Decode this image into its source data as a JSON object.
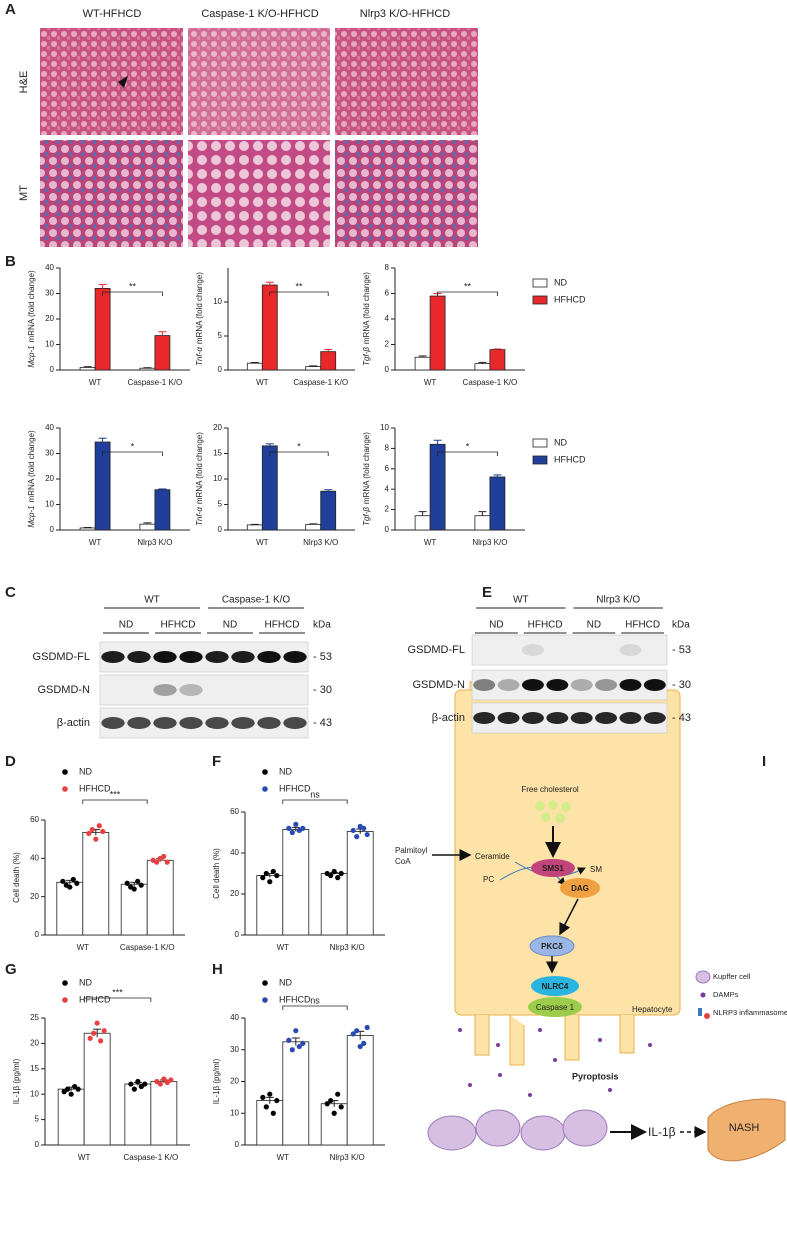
{
  "histology": {
    "letter": "A",
    "columns": [
      "WT-HFHCD",
      "Caspase-1 K/O-HFHCD",
      "Nlrp3 K/O-HFHCD"
    ],
    "rows": [
      "H&E",
      "MT"
    ]
  },
  "chart_data": [
    {
      "type": "bar",
      "letter": "B",
      "ylabel_gene": "Mcp-1",
      "ylabel": "mRNA (fold change)",
      "categories": [
        "WT",
        "Caspase-1 K/O"
      ],
      "series": [
        {
          "name": "ND",
          "color": "#ffffff",
          "values": [
            1,
            0.7
          ],
          "errors": [
            0.3,
            0.2
          ]
        },
        {
          "name": "HFHCD",
          "color": "#e8282b",
          "values": [
            32,
            13.5
          ],
          "errors": [
            1.5,
            1.5
          ]
        }
      ],
      "ylim": [
        0,
        40
      ],
      "yticks": [
        0,
        10,
        20,
        30,
        40
      ],
      "significance": "**"
    },
    {
      "type": "bar",
      "ylabel_gene": "Tnf-α",
      "ylabel": "mRNA (fold change)",
      "categories": [
        "WT",
        "Caspase-1 K/O"
      ],
      "series": [
        {
          "name": "ND",
          "color": "#ffffff",
          "values": [
            1,
            0.5
          ],
          "errors": [
            0.1,
            0.1
          ]
        },
        {
          "name": "HFHCD",
          "color": "#e8282b",
          "values": [
            12.5,
            2.7
          ],
          "errors": [
            0.4,
            0.3
          ]
        }
      ],
      "ylim": [
        0,
        15
      ],
      "yticks": [
        0,
        5,
        10
      ],
      "significance": "**"
    },
    {
      "type": "bar",
      "ylabel_gene": "Tgf-β",
      "ylabel": "mRNA (fold change)",
      "categories": [
        "WT",
        "Caspase-1 K/O"
      ],
      "series": [
        {
          "name": "ND",
          "color": "#ffffff",
          "values": [
            1,
            0.5
          ],
          "errors": [
            0.1,
            0.1
          ]
        },
        {
          "name": "HFHCD",
          "color": "#e8282b",
          "values": [
            5.8,
            1.6
          ],
          "errors": [
            0.2,
            0.05
          ]
        }
      ],
      "ylim": [
        0,
        8
      ],
      "yticks": [
        0,
        2,
        4,
        6,
        8
      ],
      "significance": "**",
      "legend": "right"
    },
    {
      "type": "bar",
      "ylabel_gene": "Mcp-1",
      "ylabel": "mRNA (fold change)",
      "categories": [
        "WT",
        "Nlrp3 K/O"
      ],
      "series": [
        {
          "name": "ND",
          "color": "#ffffff",
          "values": [
            0.8,
            2.3
          ],
          "errors": [
            0.2,
            0.5
          ]
        },
        {
          "name": "HFHCD",
          "color": "#1f3f9a",
          "values": [
            34.5,
            15.8
          ],
          "errors": [
            1.5,
            0.3
          ]
        }
      ],
      "ylim": [
        0,
        40
      ],
      "yticks": [
        0,
        10,
        20,
        30,
        40
      ],
      "significance": "*"
    },
    {
      "type": "bar",
      "ylabel_gene": "Tnf-α",
      "ylabel": "mRNA (fold change)",
      "categories": [
        "WT",
        "Nlrp3 K/O"
      ],
      "series": [
        {
          "name": "ND",
          "color": "#ffffff",
          "values": [
            1,
            1.1
          ],
          "errors": [
            0.1,
            0.1
          ]
        },
        {
          "name": "HFHCD",
          "color": "#1f3f9a",
          "values": [
            16.5,
            7.6
          ],
          "errors": [
            0.4,
            0.3
          ]
        }
      ],
      "ylim": [
        0,
        20
      ],
      "yticks": [
        0,
        5,
        10,
        15,
        20
      ],
      "significance": "*"
    },
    {
      "type": "bar",
      "ylabel_gene": "Tgf-β",
      "ylabel": "mRNA (fold change)",
      "categories": [
        "WT",
        "Nlrp3 K/O"
      ],
      "series": [
        {
          "name": "ND",
          "color": "#ffffff",
          "values": [
            1.4,
            1.4
          ],
          "errors": [
            0.4,
            0.4
          ]
        },
        {
          "name": "HFHCD",
          "color": "#1f3f9a",
          "values": [
            8.4,
            5.2
          ],
          "errors": [
            0.4,
            0.2
          ]
        }
      ],
      "ylim": [
        0,
        10
      ],
      "yticks": [
        0,
        2,
        4,
        6,
        8,
        10
      ],
      "significance": "*",
      "legend": "right"
    },
    {
      "type": "bar",
      "letter": "D",
      "ylabel": "Cell death (%)",
      "categories": [
        "WT",
        "Caspase-1 K/O"
      ],
      "series": [
        {
          "name": "ND",
          "color": "#000000",
          "values": [
            27.5,
            26.5
          ],
          "errors": [
            1,
            1
          ],
          "points": [
            [
              28,
              26,
              25,
              29,
              27
            ],
            [
              27,
              25,
              24,
              28,
              26
            ]
          ]
        },
        {
          "name": "HFHCD",
          "color": "#e84040",
          "values": [
            53.5,
            39
          ],
          "errors": [
            1.5,
            0.8
          ],
          "points": [
            [
              53,
              55,
              50,
              57,
              54
            ],
            [
              39,
              38,
              40,
              41,
              38
            ]
          ]
        }
      ],
      "ylim": [
        0,
        60
      ],
      "yticks": [
        0,
        20,
        40,
        60
      ],
      "significance": "***",
      "legend": "top-left"
    },
    {
      "type": "bar",
      "letter": "F",
      "ylabel": "Cell death (%)",
      "categories": [
        "WT",
        "Nlrp3 K/O"
      ],
      "series": [
        {
          "name": "ND",
          "color": "#000000",
          "values": [
            29,
            30
          ],
          "errors": [
            1,
            0.5
          ],
          "points": [
            [
              28,
              30,
              26,
              31,
              29
            ],
            [
              30,
              29,
              31,
              28,
              30
            ]
          ]
        },
        {
          "name": "HFHCD",
          "color": "#2a4bb5",
          "values": [
            51.5,
            50.5
          ],
          "errors": [
            1,
            1.2
          ],
          "points": [
            [
              52,
              50,
              54,
              51,
              52
            ],
            [
              51,
              48,
              53,
              52,
              49
            ]
          ]
        }
      ],
      "ylim": [
        0,
        60
      ],
      "yticks": [
        0,
        20,
        40,
        60
      ],
      "significance": "ns",
      "legend": "top-left"
    },
    {
      "type": "bar",
      "letter": "G",
      "ylabel": "IL-1β (pg/ml)",
      "categories": [
        "WT",
        "Caspase-1 K/O"
      ],
      "series": [
        {
          "name": "ND",
          "color": "#000000",
          "values": [
            11,
            12
          ],
          "errors": [
            0.4,
            0.3
          ],
          "points": [
            [
              10.5,
              11,
              10,
              11.5,
              11
            ],
            [
              12,
              11,
              12.5,
              11.5,
              12
            ]
          ]
        },
        {
          "name": "HFHCD",
          "color": "#e84040",
          "values": [
            22,
            12.5
          ],
          "errors": [
            0.8,
            0.3
          ],
          "points": [
            [
              21,
              22,
              24,
              20.5,
              22.5
            ],
            [
              12.5,
              12,
              13,
              12.3,
              12.8
            ]
          ]
        }
      ],
      "ylim": [
        0,
        25
      ],
      "yticks": [
        0,
        5,
        10,
        15,
        20,
        25
      ],
      "significance": "***",
      "legend": "top-left"
    },
    {
      "type": "bar",
      "letter": "H",
      "ylabel": "IL-1β (pg/ml)",
      "categories": [
        "WT",
        "Nlrp3 K/O"
      ],
      "series": [
        {
          "name": "ND",
          "color": "#000000",
          "values": [
            14,
            13
          ],
          "errors": [
            1,
            1
          ],
          "points": [
            [
              15,
              12,
              16,
              10,
              14
            ],
            [
              13,
              14,
              10,
              16,
              12
            ]
          ]
        },
        {
          "name": "HFHCD",
          "color": "#2a4bb5",
          "values": [
            32.5,
            34.5
          ],
          "errors": [
            1.2,
            1.3
          ],
          "points": [
            [
              33,
              30,
              36,
              31,
              32
            ],
            [
              35,
              36,
              31,
              32,
              37
            ]
          ]
        }
      ],
      "ylim": [
        0,
        40
      ],
      "yticks": [
        0,
        10,
        20,
        30,
        40
      ],
      "significance": "ns",
      "legend": "top-left"
    }
  ],
  "blots": [
    {
      "letter": "C",
      "groups": [
        "WT",
        "Caspase-1 K/O"
      ],
      "lanes": [
        "ND",
        "HFHCD",
        "ND",
        "HFHCD"
      ],
      "unit": "kDa",
      "rows": [
        {
          "name": "GSDMD-FL",
          "kda": "- 53"
        },
        {
          "name": "GSDMD-N",
          "kda": "- 30"
        },
        {
          "name": "β-actin",
          "kda": "- 43"
        }
      ]
    },
    {
      "letter": "E",
      "groups": [
        "WT",
        "Nlrp3 K/O"
      ],
      "lanes": [
        "ND",
        "HFHCD",
        "ND",
        "HFHCD"
      ],
      "unit": "kDa",
      "rows": [
        {
          "name": "GSDMD-FL",
          "kda": "- 53"
        },
        {
          "name": "GSDMD-N",
          "kda": "- 30"
        },
        {
          "name": "β-actin",
          "kda": "- 43"
        }
      ]
    }
  ],
  "diagram": {
    "letter": "I",
    "free_cholesterol": "Free cholesterol",
    "palmitoyl": "Palmitoyl",
    "coa": "CoA",
    "ceramide": "Ceramide",
    "pc": "PC",
    "sms1": "SMS1",
    "sm": "SM",
    "dag": "DAG",
    "pkc": "PKCδ",
    "nlrc4": "NLRC4",
    "caspase": "Caspase 1",
    "hepatocyte": "Hepatocyte",
    "pyroptosis": "Pyroptosis",
    "il1b": "IL-1β",
    "nash": "NASH",
    "legend": [
      "Kupffer cell",
      "DAMPs",
      "NLRP3 inflammasome"
    ]
  }
}
